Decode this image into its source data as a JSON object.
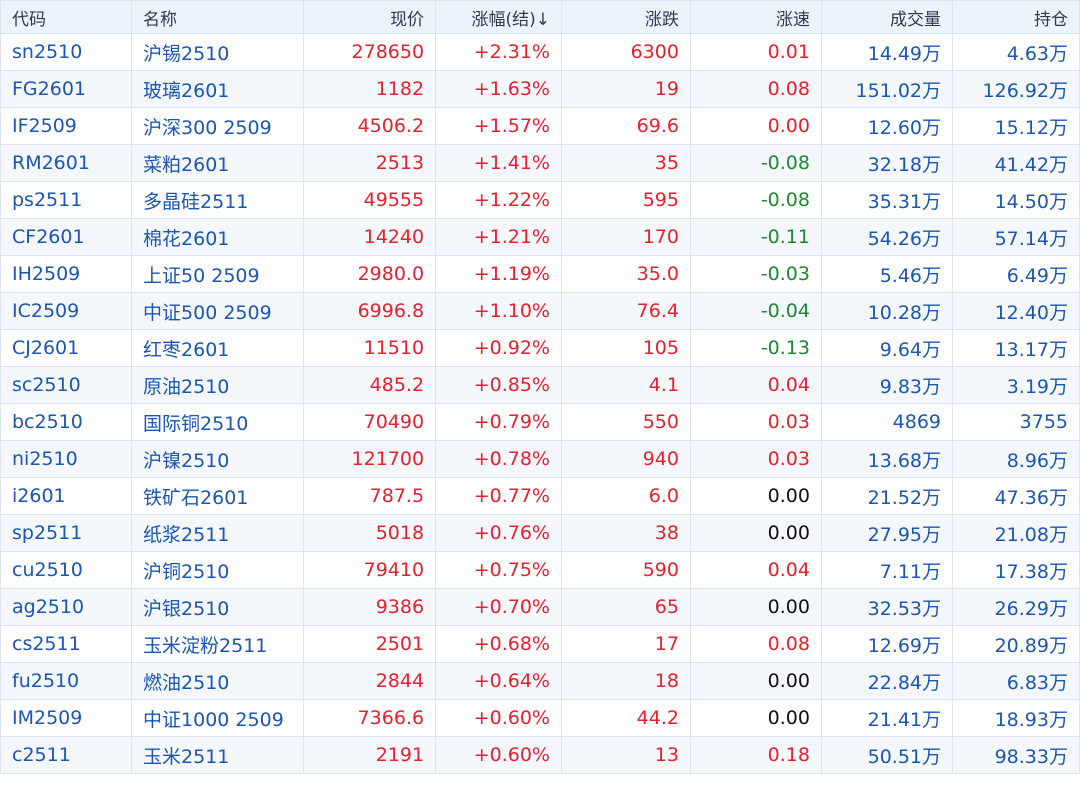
{
  "colors": {
    "up": "#e8202b",
    "down": "#1c8a2e",
    "flat": "#111111",
    "link": "#1a56b4",
    "header_bg": "#edf3fb",
    "row_alt_bg": "#f4f8fd"
  },
  "headers": {
    "code": "代码",
    "name": "名称",
    "price": "现价",
    "pct": "涨幅(结)↓",
    "change": "涨跌",
    "speed": "涨速",
    "volume": "成交量",
    "open_interest": "持仓"
  },
  "rows": [
    {
      "code": "sn2510",
      "name": "沪锡2510",
      "price": "278650",
      "pct": "+2.31%",
      "change": "6300",
      "speed": "0.01",
      "speed_dir": "up",
      "volume": "14.49万",
      "open_interest": "4.63万"
    },
    {
      "code": "FG2601",
      "name": "玻璃2601",
      "price": "1182",
      "pct": "+1.63%",
      "change": "19",
      "speed": "0.08",
      "speed_dir": "up",
      "volume": "151.02万",
      "open_interest": "126.92万"
    },
    {
      "code": "IF2509",
      "name": "沪深300 2509",
      "price": "4506.2",
      "pct": "+1.57%",
      "change": "69.6",
      "speed": "0.00",
      "speed_dir": "up",
      "volume": "12.60万",
      "open_interest": "15.12万"
    },
    {
      "code": "RM2601",
      "name": "菜粕2601",
      "price": "2513",
      "pct": "+1.41%",
      "change": "35",
      "speed": "-0.08",
      "speed_dir": "down",
      "volume": "32.18万",
      "open_interest": "41.42万"
    },
    {
      "code": "ps2511",
      "name": "多晶硅2511",
      "price": "49555",
      "pct": "+1.22%",
      "change": "595",
      "speed": "-0.08",
      "speed_dir": "down",
      "volume": "35.31万",
      "open_interest": "14.50万"
    },
    {
      "code": "CF2601",
      "name": "棉花2601",
      "price": "14240",
      "pct": "+1.21%",
      "change": "170",
      "speed": "-0.11",
      "speed_dir": "down",
      "volume": "54.26万",
      "open_interest": "57.14万"
    },
    {
      "code": "IH2509",
      "name": "上证50 2509",
      "price": "2980.0",
      "pct": "+1.19%",
      "change": "35.0",
      "speed": "-0.03",
      "speed_dir": "down",
      "volume": "5.46万",
      "open_interest": "6.49万"
    },
    {
      "code": "IC2509",
      "name": "中证500 2509",
      "price": "6996.8",
      "pct": "+1.10%",
      "change": "76.4",
      "speed": "-0.04",
      "speed_dir": "down",
      "volume": "10.28万",
      "open_interest": "12.40万"
    },
    {
      "code": "CJ2601",
      "name": "红枣2601",
      "price": "11510",
      "pct": "+0.92%",
      "change": "105",
      "speed": "-0.13",
      "speed_dir": "down",
      "volume": "9.64万",
      "open_interest": "13.17万"
    },
    {
      "code": "sc2510",
      "name": "原油2510",
      "price": "485.2",
      "pct": "+0.85%",
      "change": "4.1",
      "speed": "0.04",
      "speed_dir": "up",
      "volume": "9.83万",
      "open_interest": "3.19万"
    },
    {
      "code": "bc2510",
      "name": "国际铜2510",
      "price": "70490",
      "pct": "+0.79%",
      "change": "550",
      "speed": "0.03",
      "speed_dir": "up",
      "volume": "4869",
      "open_interest": "3755"
    },
    {
      "code": "ni2510",
      "name": "沪镍2510",
      "price": "121700",
      "pct": "+0.78%",
      "change": "940",
      "speed": "0.03",
      "speed_dir": "up",
      "volume": "13.68万",
      "open_interest": "8.96万"
    },
    {
      "code": "i2601",
      "name": "铁矿石2601",
      "price": "787.5",
      "pct": "+0.77%",
      "change": "6.0",
      "speed": "0.00",
      "speed_dir": "flat",
      "volume": "21.52万",
      "open_interest": "47.36万"
    },
    {
      "code": "sp2511",
      "name": "纸浆2511",
      "price": "5018",
      "pct": "+0.76%",
      "change": "38",
      "speed": "0.00",
      "speed_dir": "flat",
      "volume": "27.95万",
      "open_interest": "21.08万"
    },
    {
      "code": "cu2510",
      "name": "沪铜2510",
      "price": "79410",
      "pct": "+0.75%",
      "change": "590",
      "speed": "0.04",
      "speed_dir": "up",
      "volume": "7.11万",
      "open_interest": "17.38万"
    },
    {
      "code": "ag2510",
      "name": "沪银2510",
      "price": "9386",
      "pct": "+0.70%",
      "change": "65",
      "speed": "0.00",
      "speed_dir": "flat",
      "volume": "32.53万",
      "open_interest": "26.29万"
    },
    {
      "code": "cs2511",
      "name": "玉米淀粉2511",
      "price": "2501",
      "pct": "+0.68%",
      "change": "17",
      "speed": "0.08",
      "speed_dir": "up",
      "volume": "12.69万",
      "open_interest": "20.89万"
    },
    {
      "code": "fu2510",
      "name": "燃油2510",
      "price": "2844",
      "pct": "+0.64%",
      "change": "18",
      "speed": "0.00",
      "speed_dir": "flat",
      "volume": "22.84万",
      "open_interest": "6.83万"
    },
    {
      "code": "IM2509",
      "name": "中证1000 2509",
      "price": "7366.6",
      "pct": "+0.60%",
      "change": "44.2",
      "speed": "0.00",
      "speed_dir": "flat",
      "volume": "21.41万",
      "open_interest": "18.93万"
    },
    {
      "code": "c2511",
      "name": "玉米2511",
      "price": "2191",
      "pct": "+0.60%",
      "change": "13",
      "speed": "0.18",
      "speed_dir": "up",
      "volume": "50.51万",
      "open_interest": "98.33万"
    }
  ]
}
